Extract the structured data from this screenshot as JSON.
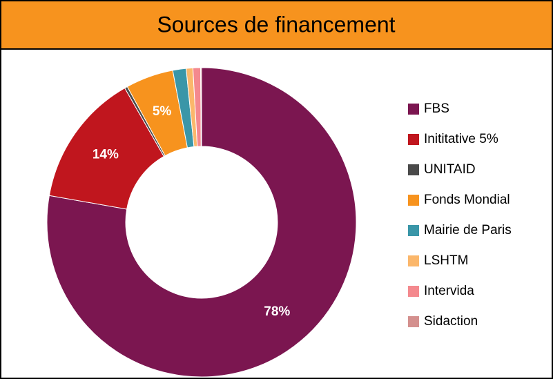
{
  "chart_data": {
    "type": "donut",
    "title": "Sources de financement",
    "categories": [
      "FBS",
      "Inititative 5%",
      "UNITAID",
      "Fonds Mondial",
      "Mairie de Paris",
      "LSHTM",
      "Intervida",
      "Sidaction"
    ],
    "values": [
      78,
      14,
      0.3,
      5,
      1.4,
      0.7,
      0.8,
      0.1
    ],
    "value_labels": [
      "78%",
      "14%",
      null,
      "5%",
      null,
      null,
      null,
      null
    ],
    "colors": [
      "#7b1650",
      "#c0161e",
      "#4a4a4a",
      "#f7931e",
      "#3a96a8",
      "#fbb76b",
      "#f4898e",
      "#d4908e"
    ],
    "legend": "right"
  }
}
